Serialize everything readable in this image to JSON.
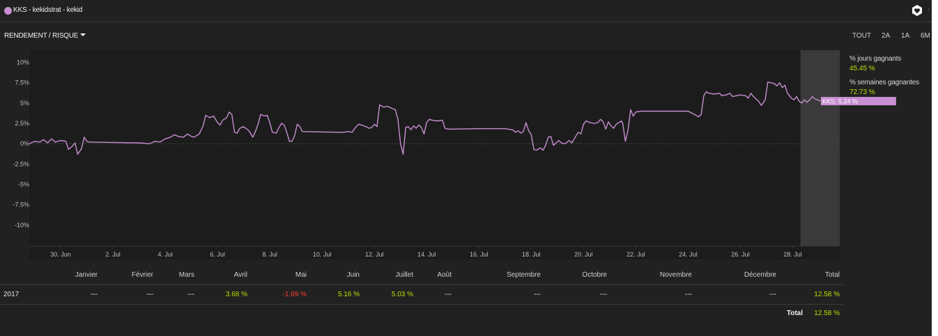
{
  "header": {
    "strategy_title": "KKS - kekidstrat - kekid",
    "strategy_color": "#c78fd1"
  },
  "toolbar": {
    "view_dropdown": "RENDEMENT / RISQUE",
    "ranges": [
      "TOUT",
      "2A",
      "1A",
      "6M"
    ]
  },
  "stats": {
    "win_days_label": "% jours gagnants",
    "win_days_value": "45.45 %",
    "win_weeks_label": "% semaines gagnantes",
    "win_weeks_value": "72.73 %"
  },
  "chart_data": {
    "type": "line",
    "series_color": "#c78fd1",
    "y_ticks": [
      "10%",
      "7.5%",
      "5%",
      "2.5%",
      "0%",
      "-2.5%",
      "-5%",
      "-7.5%",
      "-10%"
    ],
    "ylim": [
      -12.5,
      11.5
    ],
    "x_ticks": [
      "30. Jun",
      "2. Jul",
      "4. Jul",
      "6. Jul",
      "8. Jul",
      "10. Jul",
      "12. Jul",
      "14. Jul",
      "16. Jul",
      "18. Jul",
      "20. Jul",
      "22. Jul",
      "24. Jul",
      "26. Jul",
      "28. Jul"
    ],
    "x_range_days": [
      28.8,
      59.8
    ],
    "x_tick_days": [
      30,
      32,
      34,
      36,
      38,
      40,
      42,
      44,
      46,
      48,
      50,
      52,
      54,
      56,
      58
    ],
    "highlight_range_days": [
      58.3,
      59.8
    ],
    "tooltip_label": "KKS: 5.24 %",
    "tooltip_value": 5.24,
    "series": [
      {
        "points": [
          [
            28.8,
            0
          ],
          [
            29.0,
            0.3
          ],
          [
            29.2,
            0.2
          ],
          [
            29.35,
            0.5
          ],
          [
            29.5,
            0.1
          ],
          [
            29.65,
            0.6
          ],
          [
            29.8,
            0.2
          ],
          [
            30.0,
            0.4
          ],
          [
            30.2,
            0.3
          ],
          [
            30.3,
            -0.7
          ],
          [
            30.45,
            -0.3
          ],
          [
            30.55,
            0.1
          ],
          [
            30.65,
            -1.3
          ],
          [
            30.8,
            -0.6
          ],
          [
            30.9,
            0.8
          ],
          [
            31.0,
            0.3
          ],
          [
            31.1,
            0.2
          ],
          [
            32.0,
            0.15
          ],
          [
            33.0,
            0.1
          ],
          [
            33.4,
            0.0
          ],
          [
            33.6,
            0.3
          ],
          [
            33.8,
            0.2
          ],
          [
            34.0,
            0.6
          ],
          [
            34.2,
            0.8
          ],
          [
            34.35,
            1.1
          ],
          [
            34.5,
            0.9
          ],
          [
            34.7,
            0.8
          ],
          [
            34.85,
            1.2
          ],
          [
            35.0,
            0.9
          ],
          [
            35.1,
            0.8
          ],
          [
            35.3,
            1.2
          ],
          [
            35.45,
            2.2
          ],
          [
            35.55,
            3.5
          ],
          [
            35.7,
            3.2
          ],
          [
            35.85,
            3.4
          ],
          [
            36.0,
            2.6
          ],
          [
            36.1,
            2.3
          ],
          [
            36.2,
            2.9
          ],
          [
            36.35,
            3.2
          ],
          [
            36.45,
            3.9
          ],
          [
            36.55,
            3.6
          ],
          [
            36.65,
            1.4
          ],
          [
            36.75,
            1.3
          ],
          [
            36.85,
            1.9
          ],
          [
            37.0,
            2.1
          ],
          [
            37.2,
            1.6
          ],
          [
            37.35,
            0.8
          ],
          [
            37.45,
            1.5
          ],
          [
            37.55,
            2.4
          ],
          [
            37.65,
            3.6
          ],
          [
            37.8,
            3.4
          ],
          [
            37.9,
            3.5
          ],
          [
            38.0,
            2.6
          ],
          [
            38.1,
            1.4
          ],
          [
            38.25,
            1.3
          ],
          [
            38.35,
            2.0
          ],
          [
            38.45,
            2.5
          ],
          [
            38.55,
            2.3
          ],
          [
            38.65,
            1.4
          ],
          [
            38.75,
            0.3
          ],
          [
            38.85,
            0.3
          ],
          [
            38.95,
            1.0
          ],
          [
            39.05,
            2.4
          ],
          [
            39.15,
            2.1
          ],
          [
            39.25,
            1.5
          ],
          [
            40.0,
            1.45
          ],
          [
            40.8,
            1.4
          ],
          [
            41.0,
            1.5
          ],
          [
            41.15,
            1.4
          ],
          [
            41.25,
            1.9
          ],
          [
            41.4,
            2.4
          ],
          [
            41.5,
            2.3
          ],
          [
            41.6,
            2.2
          ],
          [
            41.8,
            1.9
          ],
          [
            41.9,
            2.0
          ],
          [
            42.0,
            2.4
          ],
          [
            42.1,
            2.1
          ],
          [
            42.2,
            4.8
          ],
          [
            42.35,
            4.5
          ],
          [
            42.5,
            4.6
          ],
          [
            42.7,
            4.3
          ],
          [
            42.8,
            4.2
          ],
          [
            42.9,
            3.0
          ],
          [
            43.0,
            0.0
          ],
          [
            43.1,
            -1.3
          ],
          [
            43.2,
            2.0
          ],
          [
            43.3,
            2.1
          ],
          [
            43.4,
            1.7
          ],
          [
            43.5,
            2.2
          ],
          [
            43.6,
            1.9
          ],
          [
            43.7,
            2.3
          ],
          [
            43.8,
            2.0
          ],
          [
            43.9,
            1.2
          ],
          [
            44.0,
            2.6
          ],
          [
            44.1,
            3.0
          ],
          [
            44.2,
            2.9
          ],
          [
            44.4,
            2.8
          ],
          [
            44.6,
            2.9
          ],
          [
            44.7,
            1.9
          ],
          [
            44.8,
            1.8
          ],
          [
            45.0,
            1.8
          ],
          [
            46.0,
            1.85
          ],
          [
            47.0,
            1.85
          ],
          [
            47.3,
            1.7
          ],
          [
            47.4,
            1.4
          ],
          [
            47.5,
            1.6
          ],
          [
            47.6,
            1.3
          ],
          [
            47.7,
            1.5
          ],
          [
            47.8,
            2.6
          ],
          [
            47.9,
            1.6
          ],
          [
            48.0,
            1.1
          ],
          [
            48.1,
            -0.7
          ],
          [
            48.2,
            -0.8
          ],
          [
            48.35,
            -0.5
          ],
          [
            48.45,
            -0.8
          ],
          [
            48.55,
            -0.2
          ],
          [
            48.65,
            0.8
          ],
          [
            48.75,
            0.9
          ],
          [
            48.85,
            -0.2
          ],
          [
            48.95,
            0.1
          ],
          [
            49.05,
            0.4
          ],
          [
            49.15,
            0.1
          ],
          [
            49.3,
            0.0
          ],
          [
            49.45,
            0.4
          ],
          [
            49.55,
            0.1
          ],
          [
            49.7,
            0.9
          ],
          [
            49.8,
            1.4
          ],
          [
            49.9,
            1.2
          ],
          [
            50.0,
            2.4
          ],
          [
            50.1,
            2.8
          ],
          [
            50.25,
            2.6
          ],
          [
            50.4,
            2.5
          ],
          [
            50.55,
            2.6
          ],
          [
            50.65,
            3.0
          ],
          [
            50.75,
            2.7
          ],
          [
            50.85,
            1.8
          ],
          [
            50.95,
            2.7
          ],
          [
            51.05,
            2.2
          ],
          [
            51.15,
            1.9
          ],
          [
            51.25,
            2.4
          ],
          [
            51.35,
            2.6
          ],
          [
            51.45,
            2.8
          ],
          [
            51.5,
            2.5
          ],
          [
            51.6,
            0.3
          ],
          [
            51.7,
            1.6
          ],
          [
            51.8,
            4.2
          ],
          [
            51.9,
            3.4
          ],
          [
            52.0,
            3.9
          ],
          [
            52.2,
            4.0
          ],
          [
            53.0,
            4.0
          ],
          [
            54.0,
            4.0
          ],
          [
            54.3,
            3.5
          ],
          [
            54.4,
            3.3
          ],
          [
            54.5,
            3.6
          ],
          [
            54.6,
            5.9
          ],
          [
            54.7,
            6.4
          ],
          [
            54.8,
            6.2
          ],
          [
            55.0,
            6.1
          ],
          [
            55.2,
            6.2
          ],
          [
            55.3,
            5.9
          ],
          [
            55.45,
            6.0
          ],
          [
            55.6,
            6.2
          ],
          [
            55.7,
            5.8
          ],
          [
            55.85,
            5.9
          ],
          [
            56.0,
            6.0
          ],
          [
            56.2,
            5.9
          ],
          [
            56.3,
            5.6
          ],
          [
            56.4,
            6.2
          ],
          [
            56.5,
            5.8
          ],
          [
            56.7,
            5.2
          ],
          [
            56.8,
            4.7
          ],
          [
            56.95,
            5.4
          ],
          [
            57.05,
            7.6
          ],
          [
            57.15,
            7.5
          ],
          [
            57.3,
            7.4
          ],
          [
            57.4,
            7.1
          ],
          [
            57.5,
            7.5
          ],
          [
            57.6,
            6.9
          ],
          [
            57.7,
            7.2
          ],
          [
            57.8,
            6.2
          ],
          [
            57.95,
            5.6
          ],
          [
            58.05,
            5.4
          ],
          [
            58.15,
            5.8
          ],
          [
            58.25,
            5.2
          ],
          [
            58.35,
            5.0
          ],
          [
            58.45,
            5.4
          ],
          [
            58.55,
            5.1
          ],
          [
            58.65,
            5.4
          ],
          [
            58.75,
            5.8
          ],
          [
            58.85,
            5.5
          ],
          [
            58.95,
            5.4
          ],
          [
            59.05,
            5.24
          ]
        ]
      }
    ]
  },
  "performance_table": {
    "columns": [
      "Janvier",
      "Février",
      "Mars",
      "Avril",
      "Mai",
      "Juin",
      "Juillet",
      "Août",
      "Septembre",
      "Octobre",
      "Novembre",
      "Décembre",
      "Total"
    ],
    "rows": [
      {
        "year": "2017",
        "values": [
          "---",
          "---",
          "---",
          "3.68 %",
          "-1.69 %",
          "5.16 %",
          "5.03 %",
          "---",
          "---",
          "---",
          "---",
          "---",
          "12.58 %"
        ],
        "status": [
          "none",
          "none",
          "none",
          "pos",
          "neg",
          "pos",
          "pos",
          "none",
          "none",
          "none",
          "none",
          "none",
          "pos"
        ]
      }
    ],
    "total_label": "Total",
    "total_value": "12.58 %"
  }
}
